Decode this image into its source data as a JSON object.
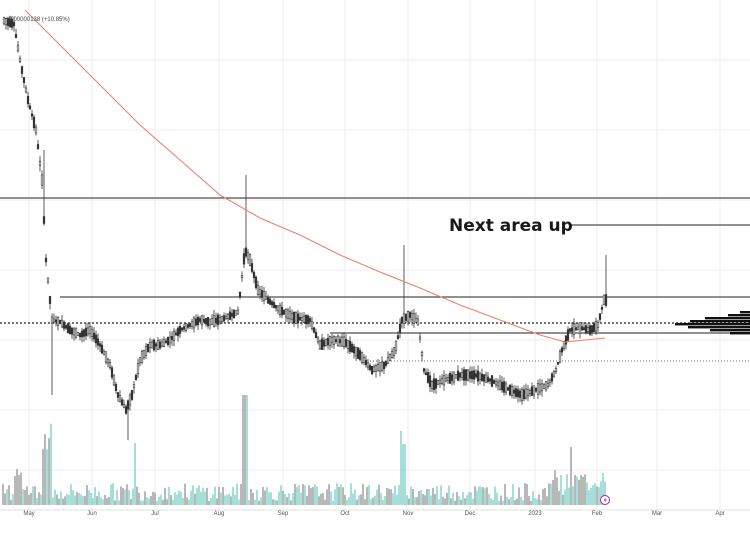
{
  "chart_data": {
    "type": "candlestick",
    "price_change_label": "+0.00000138 (+10.85%)",
    "annotations": [
      {
        "text": "Next area up"
      }
    ],
    "x_tick_labels": [
      "May",
      "Jun",
      "Jul",
      "Aug",
      "Sep",
      "Oct",
      "Nov",
      "Dec",
      "2023",
      "Feb",
      "Mar",
      "Apr"
    ],
    "grid": true,
    "indicators": [
      "moving average",
      "volume",
      "volume profile"
    ],
    "colors": {
      "background": "#ffffff",
      "candle": "#333333",
      "moving_average": "#f0806a",
      "volume": "#7fcfc8",
      "volume_dark": "#999999",
      "levels": "#222222",
      "grid": "#eeeeee",
      "event_marker": "#9c27b0"
    }
  },
  "toolbar": {
    "event_icon": "lightning-icon"
  }
}
